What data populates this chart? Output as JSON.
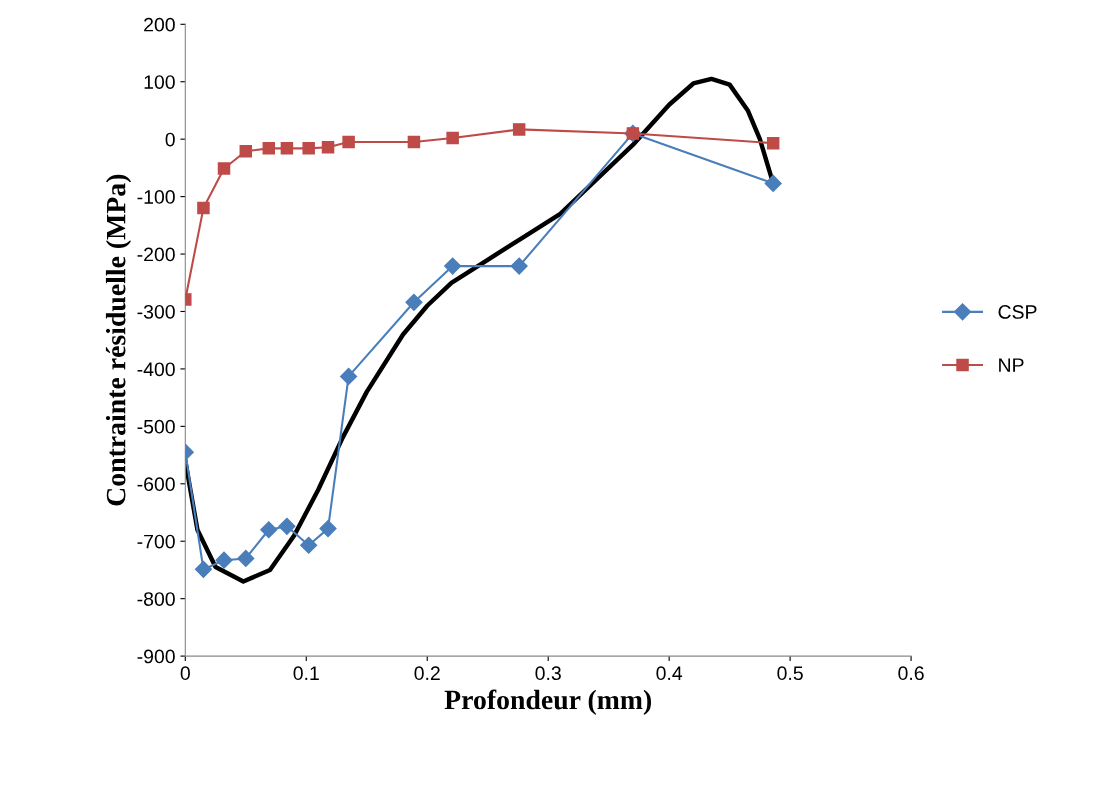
{
  "chart_data": {
    "type": "line",
    "xlabel": "Profondeur (mm)",
    "ylabel": "Contrainte résiduelle (MPa)",
    "xlim": [
      0,
      0.6
    ],
    "xticks": [
      0,
      0.1,
      0.2,
      0.3,
      0.4,
      0.5,
      0.6
    ],
    "ylim": [
      -900,
      200
    ],
    "yticks": [
      -900,
      -800,
      -700,
      -600,
      -500,
      -400,
      -300,
      -200,
      -100,
      0,
      100,
      200
    ],
    "grid": false,
    "legend": "right",
    "line_style": "solid",
    "series": [
      {
        "name": "CSP",
        "color": "#4a7ebb",
        "marker": "diamond",
        "x": [
          0,
          0.015,
          0.032,
          0.05,
          0.069,
          0.084,
          0.102,
          0.118,
          0.135,
          0.189,
          0.221,
          0.276,
          0.37,
          0.486
        ],
        "values": [
          -545,
          -749,
          -733,
          -730,
          -680,
          -674,
          -707,
          -678,
          -413,
          -284,
          -221,
          -221,
          10,
          -77
        ]
      },
      {
        "name": "NP",
        "color": "#be4b48",
        "marker": "square",
        "x": [
          0,
          0.015,
          0.032,
          0.05,
          0.069,
          0.084,
          0.102,
          0.118,
          0.135,
          0.189,
          0.221,
          0.276,
          0.37,
          0.486
        ],
        "values": [
          -279,
          -120,
          -51,
          -21,
          -16,
          -16,
          -16,
          -14,
          -5,
          -5,
          2,
          17,
          10,
          -7
        ]
      },
      {
        "color": "#000000",
        "marker": "none",
        "x": [
          0,
          0.01,
          0.025,
          0.048,
          0.07,
          0.09,
          0.11,
          0.13,
          0.15,
          0.18,
          0.2,
          0.22,
          0.25,
          0.28,
          0.31,
          0.34,
          0.37,
          0.4,
          0.42,
          0.435,
          0.45,
          0.465,
          0.475,
          0.486
        ],
        "values": [
          -560,
          -680,
          -745,
          -770,
          -750,
          -690,
          -610,
          -520,
          -440,
          -340,
          -290,
          -250,
          -210,
          -170,
          -130,
          -70,
          -10,
          60,
          97,
          105,
          95,
          50,
          0,
          -77
        ]
      }
    ]
  }
}
